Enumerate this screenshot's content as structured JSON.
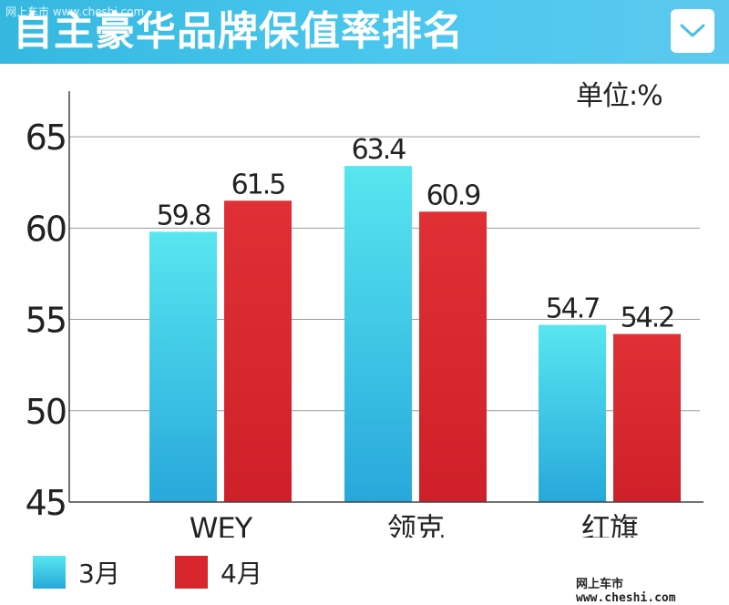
{
  "header": {
    "title": "自主豪华品牌保值率排名",
    "watermark": "网上车市 www.cheshi.com",
    "dropdown_icon": "chevron-down-icon"
  },
  "unit_label": "单位:%",
  "watermark_bottom": "网上车市 www.cheshi.com",
  "colors": {
    "series1": "#3fd0ea",
    "series2": "#d8262e",
    "header": "#45c0ea"
  },
  "chart_data": {
    "type": "bar",
    "categories": [
      "WEY",
      "领克",
      "红旗"
    ],
    "series": [
      {
        "name": "3月",
        "values": [
          59.8,
          63.4,
          54.7
        ],
        "labels": [
          "59.8",
          "63.4",
          "54.7"
        ]
      },
      {
        "name": "4月",
        "values": [
          61.5,
          60.9,
          54.2
        ],
        "labels": [
          "61.5",
          "60.9",
          "54.2"
        ]
      }
    ],
    "yticks": [
      45,
      50,
      55,
      60,
      65
    ],
    "ytick_labels": [
      "45",
      "50",
      "55",
      "60",
      "65"
    ],
    "ylim": [
      45,
      67.5
    ],
    "grid": true,
    "legend": "bottom-left"
  }
}
